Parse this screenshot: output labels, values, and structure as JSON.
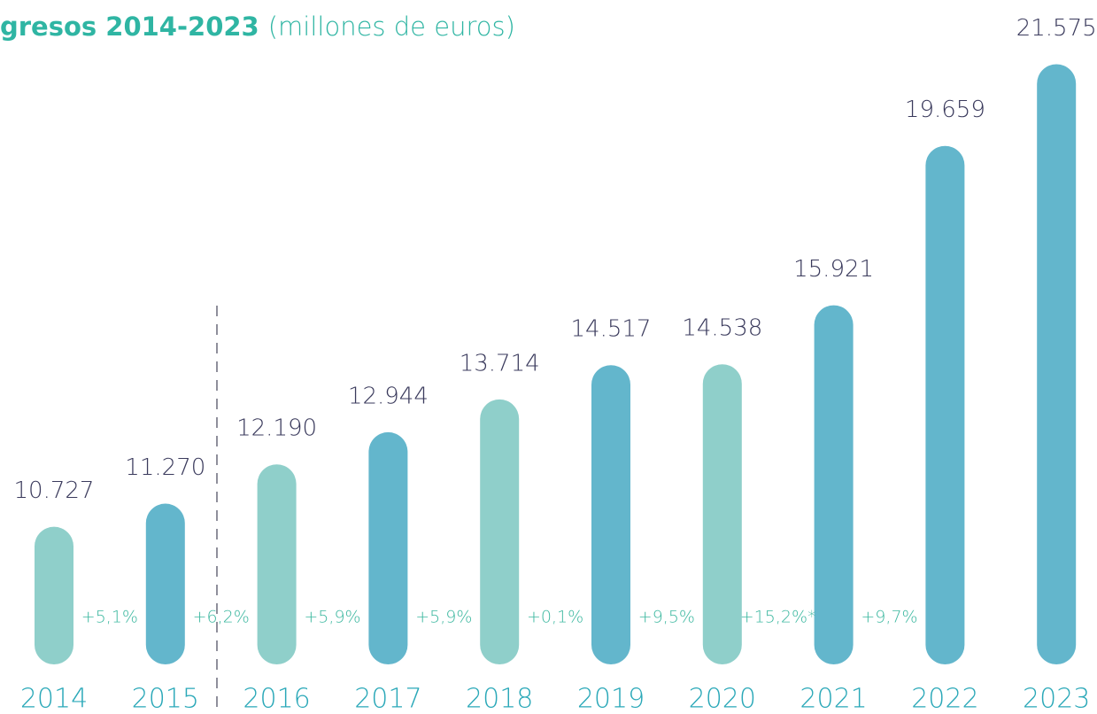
{
  "chart_data": {
    "type": "bar",
    "title": "gresos 2014-2023",
    "subtitle": "(millones de euros)",
    "categories": [
      "2014",
      "2015",
      "2016",
      "2017",
      "2018",
      "2019",
      "2020",
      "2021",
      "2022",
      "2023"
    ],
    "values": [
      10727,
      11270,
      12190,
      12944,
      13714,
      14517,
      14538,
      15921,
      19659,
      21575
    ],
    "value_labels": [
      "10.727",
      "11.270",
      "12.190",
      "12.944",
      "13.714",
      "14.517",
      "14.538",
      "15.921",
      "19.659",
      "21.575"
    ],
    "colors": [
      "#8fcfca",
      "#63b6cc",
      "#8fcfca",
      "#63b6cc",
      "#8fcfca",
      "#63b6cc",
      "#8fcfca",
      "#63b6cc",
      "#63b6cc",
      "#63b6cc"
    ],
    "annotations": [
      "+5,1%",
      "+6,2%",
      "+5,9%",
      "+5,9%",
      "+0,1%",
      "+9,5%",
      "+15,2%*",
      "+9,7%"
    ],
    "ylim": [
      7500,
      22000
    ]
  }
}
